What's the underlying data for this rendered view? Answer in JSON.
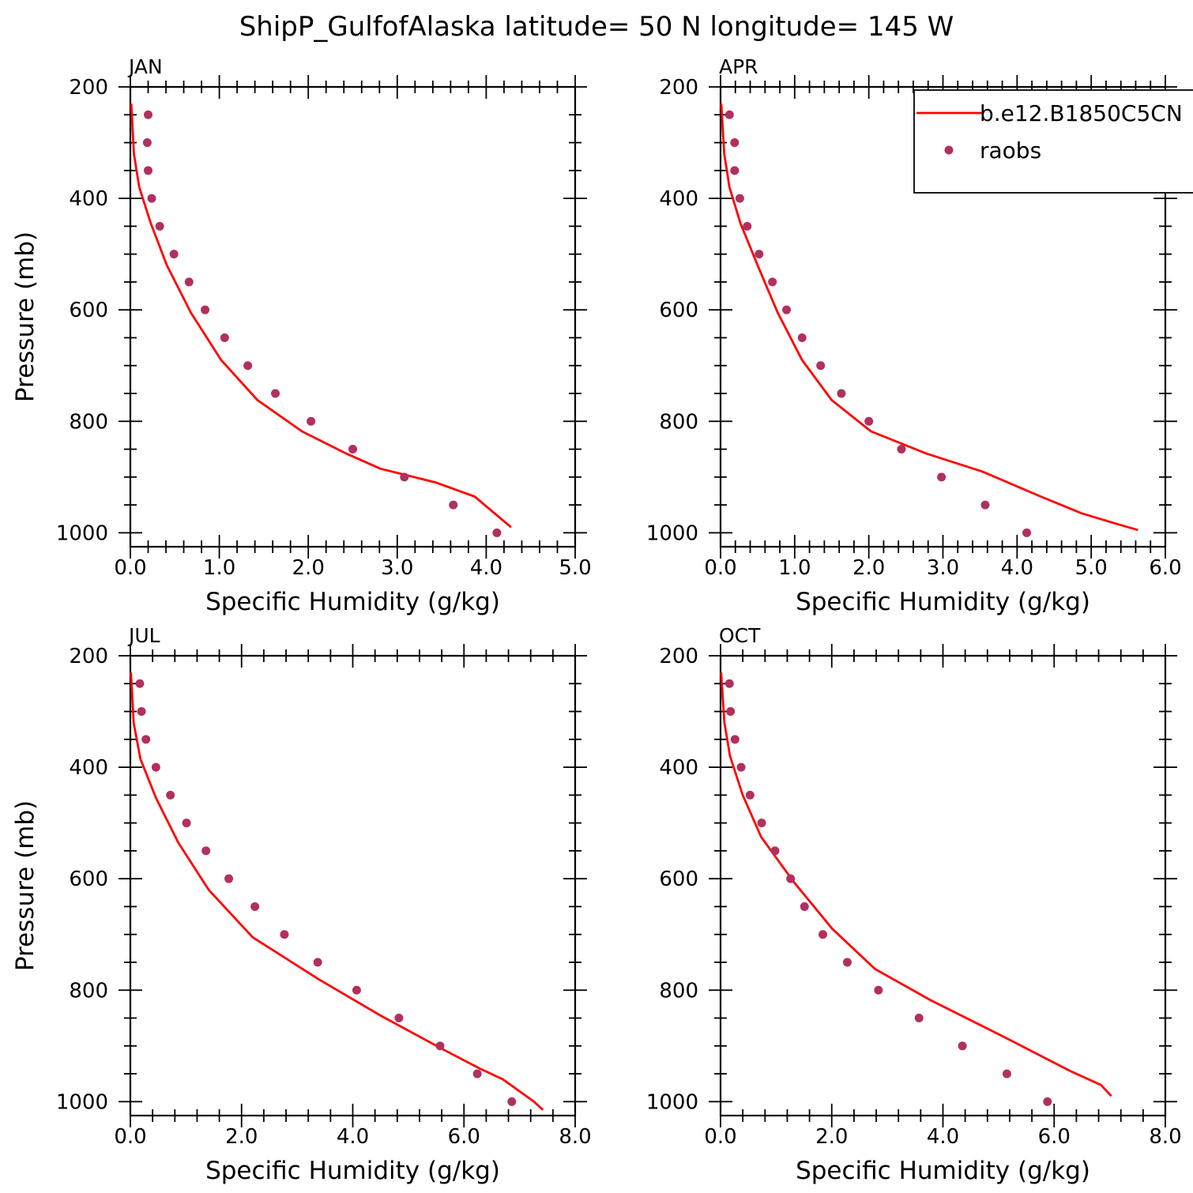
{
  "title": "ShipP_GulfofAlaska  latitude= 50 N longitude= 145 W",
  "legend": {
    "position": "top-right of APR panel",
    "entries": [
      {
        "label": "b.e12.B1850C5CN",
        "kind": "line",
        "color": "#ff0000"
      },
      {
        "label": "raobs",
        "kind": "marker",
        "color": "#b03060"
      }
    ]
  },
  "chart_data": [
    {
      "type": "line",
      "panel": "JAN",
      "xlabel": "Specific Humidity (g/kg)",
      "ylabel": "Pressure (mb)",
      "xlim": [
        0,
        5
      ],
      "xticks": [
        "0.0",
        "1.0",
        "2.0",
        "3.0",
        "4.0",
        "5.0"
      ],
      "ylim": [
        200,
        1025
      ],
      "yticks": [
        "200",
        "400",
        "600",
        "800",
        "1000"
      ],
      "model": {
        "name": "b.e12.B1850C5CN",
        "q": [
          0.01,
          0.04,
          0.1,
          0.23,
          0.41,
          0.68,
          1.02,
          1.43,
          1.93,
          2.43,
          2.81,
          3.44,
          3.87,
          4.28
        ],
        "p": [
          230,
          320,
          380,
          445,
          520,
          605,
          690,
          762,
          818,
          858,
          885,
          910,
          935,
          990
        ]
      },
      "observations": {
        "name": "raobs",
        "q": [
          0.2,
          0.19,
          0.2,
          0.24,
          0.33,
          0.49,
          0.66,
          0.84,
          1.06,
          1.32,
          1.63,
          2.03,
          2.5,
          3.08,
          3.63,
          4.12
        ],
        "p": [
          250,
          300,
          350,
          400,
          450,
          500,
          550,
          600,
          650,
          700,
          750,
          800,
          850,
          900,
          950,
          1000
        ]
      }
    },
    {
      "type": "line",
      "panel": "APR",
      "xlabel": "Specific Humidity (g/kg)",
      "ylabel": "",
      "xlim": [
        0,
        6
      ],
      "xticks": [
        "0.0",
        "1.0",
        "2.0",
        "3.0",
        "4.0",
        "5.0",
        "6.0"
      ],
      "ylim": [
        200,
        1025
      ],
      "yticks": [
        "200",
        "400",
        "600",
        "800",
        "1000"
      ],
      "model": {
        "name": "b.e12.B1850C5CN",
        "q": [
          0.01,
          0.05,
          0.12,
          0.27,
          0.5,
          0.77,
          1.1,
          1.5,
          2.03,
          2.78,
          3.53,
          3.97,
          4.32,
          4.87,
          5.37,
          5.63
        ],
        "p": [
          230,
          320,
          380,
          445,
          520,
          605,
          690,
          762,
          818,
          858,
          890,
          915,
          935,
          965,
          985,
          995
        ]
      },
      "observations": {
        "name": "raobs",
        "q": [
          0.12,
          0.19,
          0.19,
          0.26,
          0.36,
          0.52,
          0.7,
          0.89,
          1.1,
          1.35,
          1.63,
          2.0,
          2.44,
          2.98,
          3.57,
          4.13
        ],
        "p": [
          250,
          300,
          350,
          400,
          450,
          500,
          550,
          600,
          650,
          700,
          750,
          800,
          850,
          900,
          950,
          1000
        ]
      }
    },
    {
      "type": "line",
      "panel": "JUL",
      "xlabel": "Specific Humidity (g/kg)",
      "ylabel": "Pressure (mb)",
      "xlim": [
        0,
        8
      ],
      "xticks": [
        "0.0",
        "2.0",
        "4.0",
        "6.0",
        "8.0"
      ],
      "ylim": [
        200,
        1025
      ],
      "yticks": [
        "200",
        "400",
        "600",
        "800",
        "1000"
      ],
      "model": {
        "name": "b.e12.B1850C5CN",
        "q": [
          0.01,
          0.06,
          0.18,
          0.46,
          0.86,
          1.41,
          2.2,
          3.38,
          4.49,
          5.6,
          6.27,
          6.7,
          7.26,
          7.42
        ],
        "p": [
          230,
          320,
          385,
          455,
          535,
          620,
          705,
          780,
          845,
          905,
          940,
          960,
          1000,
          1015
        ]
      },
      "observations": {
        "name": "raobs",
        "q": [
          0.17,
          0.2,
          0.28,
          0.46,
          0.72,
          1.01,
          1.36,
          1.77,
          2.24,
          2.77,
          3.37,
          4.07,
          4.83,
          5.57,
          6.24,
          6.86
        ],
        "p": [
          250,
          300,
          350,
          400,
          450,
          500,
          550,
          600,
          650,
          700,
          750,
          800,
          850,
          900,
          950,
          1000
        ]
      }
    },
    {
      "type": "line",
      "panel": "OCT",
      "xlabel": "Specific Humidity (g/kg)",
      "ylabel": "",
      "xlim": [
        0,
        8
      ],
      "xticks": [
        "0.0",
        "2.0",
        "4.0",
        "6.0",
        "8.0"
      ],
      "ylim": [
        200,
        1025
      ],
      "yticks": [
        "200",
        "400",
        "600",
        "800",
        "1000"
      ],
      "model": {
        "name": "b.e12.B1850C5CN",
        "q": [
          0.01,
          0.07,
          0.17,
          0.4,
          0.73,
          1.31,
          2.01,
          2.78,
          3.78,
          5.12,
          6.29,
          6.84,
          7.03
        ],
        "p": [
          230,
          320,
          380,
          450,
          525,
          605,
          690,
          762,
          818,
          885,
          945,
          970,
          990
        ]
      },
      "observations": {
        "name": "raobs",
        "q": [
          0.16,
          0.18,
          0.26,
          0.37,
          0.53,
          0.74,
          0.98,
          1.26,
          1.51,
          1.84,
          2.28,
          2.84,
          3.57,
          4.35,
          5.15,
          5.88
        ],
        "p": [
          250,
          300,
          350,
          400,
          450,
          500,
          550,
          600,
          650,
          700,
          750,
          800,
          850,
          900,
          950,
          1000
        ]
      }
    }
  ]
}
